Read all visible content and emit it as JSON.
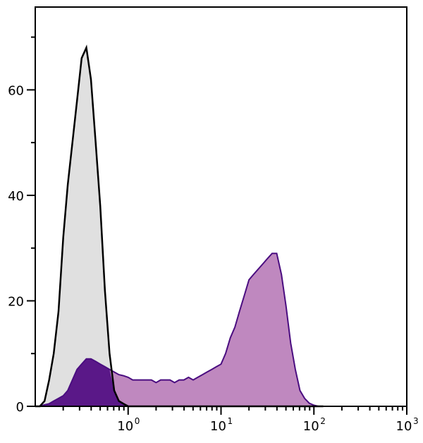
{
  "chart_data": {
    "type": "area",
    "title": "",
    "xlabel": "",
    "ylabel": "",
    "xscale": "log",
    "xlim": [
      0.1,
      1000
    ],
    "ylim": [
      0,
      75.7
    ],
    "grid": false,
    "y_ticks": [
      0,
      20,
      40,
      60
    ],
    "y_minor_ticks": [
      10,
      30,
      50,
      70
    ],
    "x_ticks": [
      {
        "base": "10",
        "exp": "0",
        "value": 1
      },
      {
        "base": "10",
        "exp": "1",
        "value": 10
      },
      {
        "base": "10",
        "exp": "2",
        "value": 100
      },
      {
        "base": "10",
        "exp": "3",
        "value": 1000
      }
    ],
    "y_tick_labels": [
      "0",
      "20",
      "40",
      "60"
    ],
    "x": [
      0.1,
      0.112,
      0.126,
      0.141,
      0.158,
      0.178,
      0.2,
      0.224,
      0.251,
      0.282,
      0.316,
      0.355,
      0.398,
      0.447,
      0.501,
      0.562,
      0.631,
      0.708,
      0.794,
      0.891,
      1,
      1.12,
      1.26,
      1.41,
      1.58,
      1.78,
      2.0,
      2.24,
      2.51,
      2.82,
      3.16,
      3.55,
      3.98,
      4.47,
      5.01,
      5.62,
      6.31,
      7.08,
      7.94,
      8.91,
      10,
      11.2,
      12.6,
      14.1,
      15.8,
      17.8,
      20,
      22.4,
      25.1,
      28.2,
      31.6,
      35.5,
      39.8,
      44.7,
      50.1,
      56.2,
      63.1,
      70.8,
      79.4,
      89.1,
      100,
      112,
      126
    ],
    "series": [
      {
        "color": "#e0e0e0",
        "line_color": "#000000",
        "values": [
          0,
          0,
          1,
          5,
          10,
          18,
          32,
          42,
          50,
          58,
          66,
          68,
          62,
          50,
          38,
          22,
          10,
          3,
          1,
          0.5,
          0,
          0,
          0,
          0,
          0,
          0,
          0,
          0,
          0,
          0,
          0,
          0,
          0,
          0,
          0,
          0,
          0,
          0,
          0,
          0,
          0,
          0,
          0,
          0,
          0,
          0,
          0,
          0,
          0,
          0,
          0,
          0,
          0,
          0,
          0,
          0,
          0,
          0,
          0,
          0,
          0,
          0,
          0
        ]
      },
      {
        "color": "#bf88bf",
        "line_color": "#4a0d80",
        "values": [
          0,
          0,
          0.3,
          0.5,
          1,
          1.5,
          2,
          3,
          5,
          7,
          8,
          9,
          9,
          8.5,
          8,
          7.5,
          7,
          6.5,
          6,
          5.8,
          5.5,
          5,
          5,
          5,
          5,
          5,
          4.5,
          5,
          5,
          5,
          4.5,
          5,
          5,
          5.5,
          5,
          5.5,
          6,
          6.5,
          7,
          7.5,
          8,
          10,
          13,
          15,
          18,
          21,
          24,
          25,
          26,
          27,
          28,
          29,
          29,
          25,
          19,
          12,
          7,
          3,
          1.5,
          0.6,
          0.2,
          0,
          0
        ]
      }
    ],
    "overlap_color": "#5a1888"
  }
}
